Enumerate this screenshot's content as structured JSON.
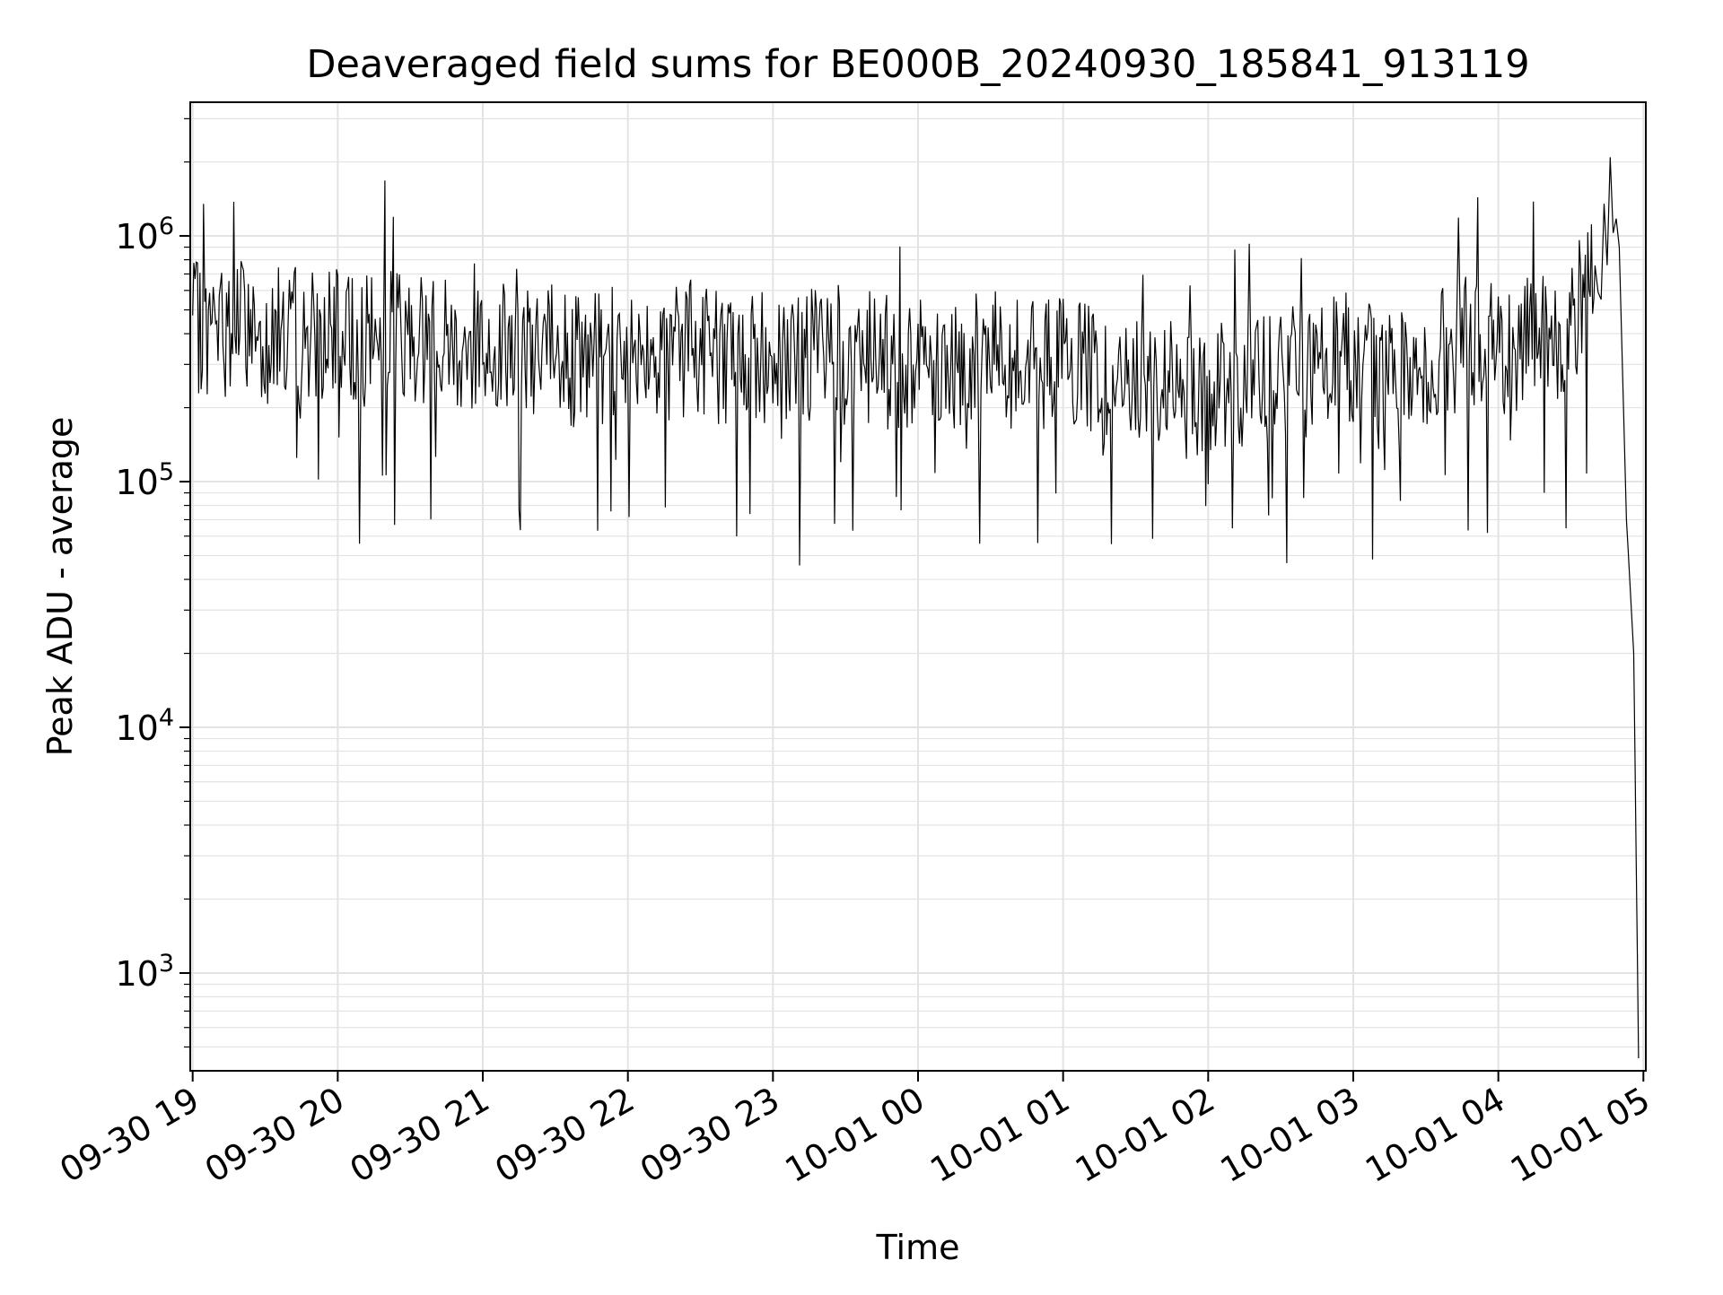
{
  "chart_data": {
    "type": "line",
    "title": "Deaveraged field sums for BE000B_20240930_185841_913119",
    "xlabel": "Time",
    "ylabel": "Peak ADU - average",
    "yscale": "log",
    "ylim": [
      400,
      3500000
    ],
    "xlim": [
      "2024-09-30 18:59",
      "2024-10-01 05:01"
    ],
    "grid": true,
    "line_color": "#000000",
    "grid_color": "#e3e3e3",
    "x_ticks": [
      "09-30 19",
      "09-30 20",
      "09-30 21",
      "09-30 22",
      "09-30 23",
      "10-01 00",
      "10-01 01",
      "10-01 02",
      "10-01 03",
      "10-01 04",
      "10-01 05"
    ],
    "y_ticks": [
      {
        "value": 1000,
        "base": "10",
        "exp": "3"
      },
      {
        "value": 10000,
        "base": "10",
        "exp": "4"
      },
      {
        "value": 100000,
        "base": "10",
        "exp": "5"
      },
      {
        "value": 1000000,
        "base": "10",
        "exp": "6"
      }
    ],
    "series": [
      {
        "x": [
          "2024-09-30 19:00",
          "2024-09-30 19:10",
          "2024-09-30 19:20",
          "2024-09-30 19:30",
          "2024-09-30 19:40",
          "2024-09-30 19:50",
          "2024-09-30 20:00",
          "2024-09-30 20:10",
          "2024-09-30 20:20",
          "2024-09-30 20:30",
          "2024-09-30 20:40",
          "2024-09-30 20:50",
          "2024-09-30 21:00",
          "2024-09-30 21:10",
          "2024-09-30 21:20",
          "2024-09-30 21:30",
          "2024-09-30 21:40",
          "2024-09-30 21:50",
          "2024-09-30 22:00",
          "2024-09-30 22:10",
          "2024-09-30 22:20",
          "2024-09-30 22:30",
          "2024-09-30 22:40",
          "2024-09-30 22:50",
          "2024-09-30 23:00",
          "2024-09-30 23:10",
          "2024-09-30 23:20",
          "2024-09-30 23:30",
          "2024-09-30 23:40",
          "2024-09-30 23:50",
          "2024-10-01 00:00",
          "2024-10-01 00:10",
          "2024-10-01 00:20",
          "2024-10-01 00:30",
          "2024-10-01 00:40",
          "2024-10-01 00:50",
          "2024-10-01 01:00",
          "2024-10-01 01:10",
          "2024-10-01 01:20",
          "2024-10-01 01:30",
          "2024-10-01 01:40",
          "2024-10-01 01:50",
          "2024-10-01 02:00",
          "2024-10-01 02:10",
          "2024-10-01 02:20",
          "2024-10-01 02:30",
          "2024-10-01 02:40",
          "2024-10-01 02:50",
          "2024-10-01 03:00",
          "2024-10-01 03:10",
          "2024-10-01 03:20",
          "2024-10-01 03:30",
          "2024-10-01 03:40",
          "2024-10-01 03:50",
          "2024-10-01 04:00",
          "2024-10-01 04:10",
          "2024-10-01 04:20",
          "2024-10-01 04:30",
          "2024-10-01 04:40",
          "2024-10-01 04:45",
          "2024-10-01 04:50",
          "2024-10-01 04:53",
          "2024-10-01 04:56",
          "2024-10-01 04:58"
        ],
        "y": [
          420000,
          400000,
          450000,
          380000,
          420000,
          410000,
          390000,
          370000,
          430000,
          400000,
          380000,
          360000,
          350000,
          370000,
          330000,
          340000,
          300000,
          320000,
          370000,
          360000,
          340000,
          350000,
          310000,
          330000,
          320000,
          300000,
          340000,
          310000,
          320000,
          300000,
          320000,
          310000,
          300000,
          330000,
          290000,
          310000,
          300000,
          280000,
          260000,
          240000,
          250000,
          230000,
          220000,
          260000,
          250000,
          270000,
          280000,
          300000,
          320000,
          290000,
          270000,
          300000,
          350000,
          370000,
          380000,
          360000,
          400000,
          420000,
          650000,
          1200000,
          900000,
          70000,
          20000,
          450
        ]
      }
    ]
  }
}
